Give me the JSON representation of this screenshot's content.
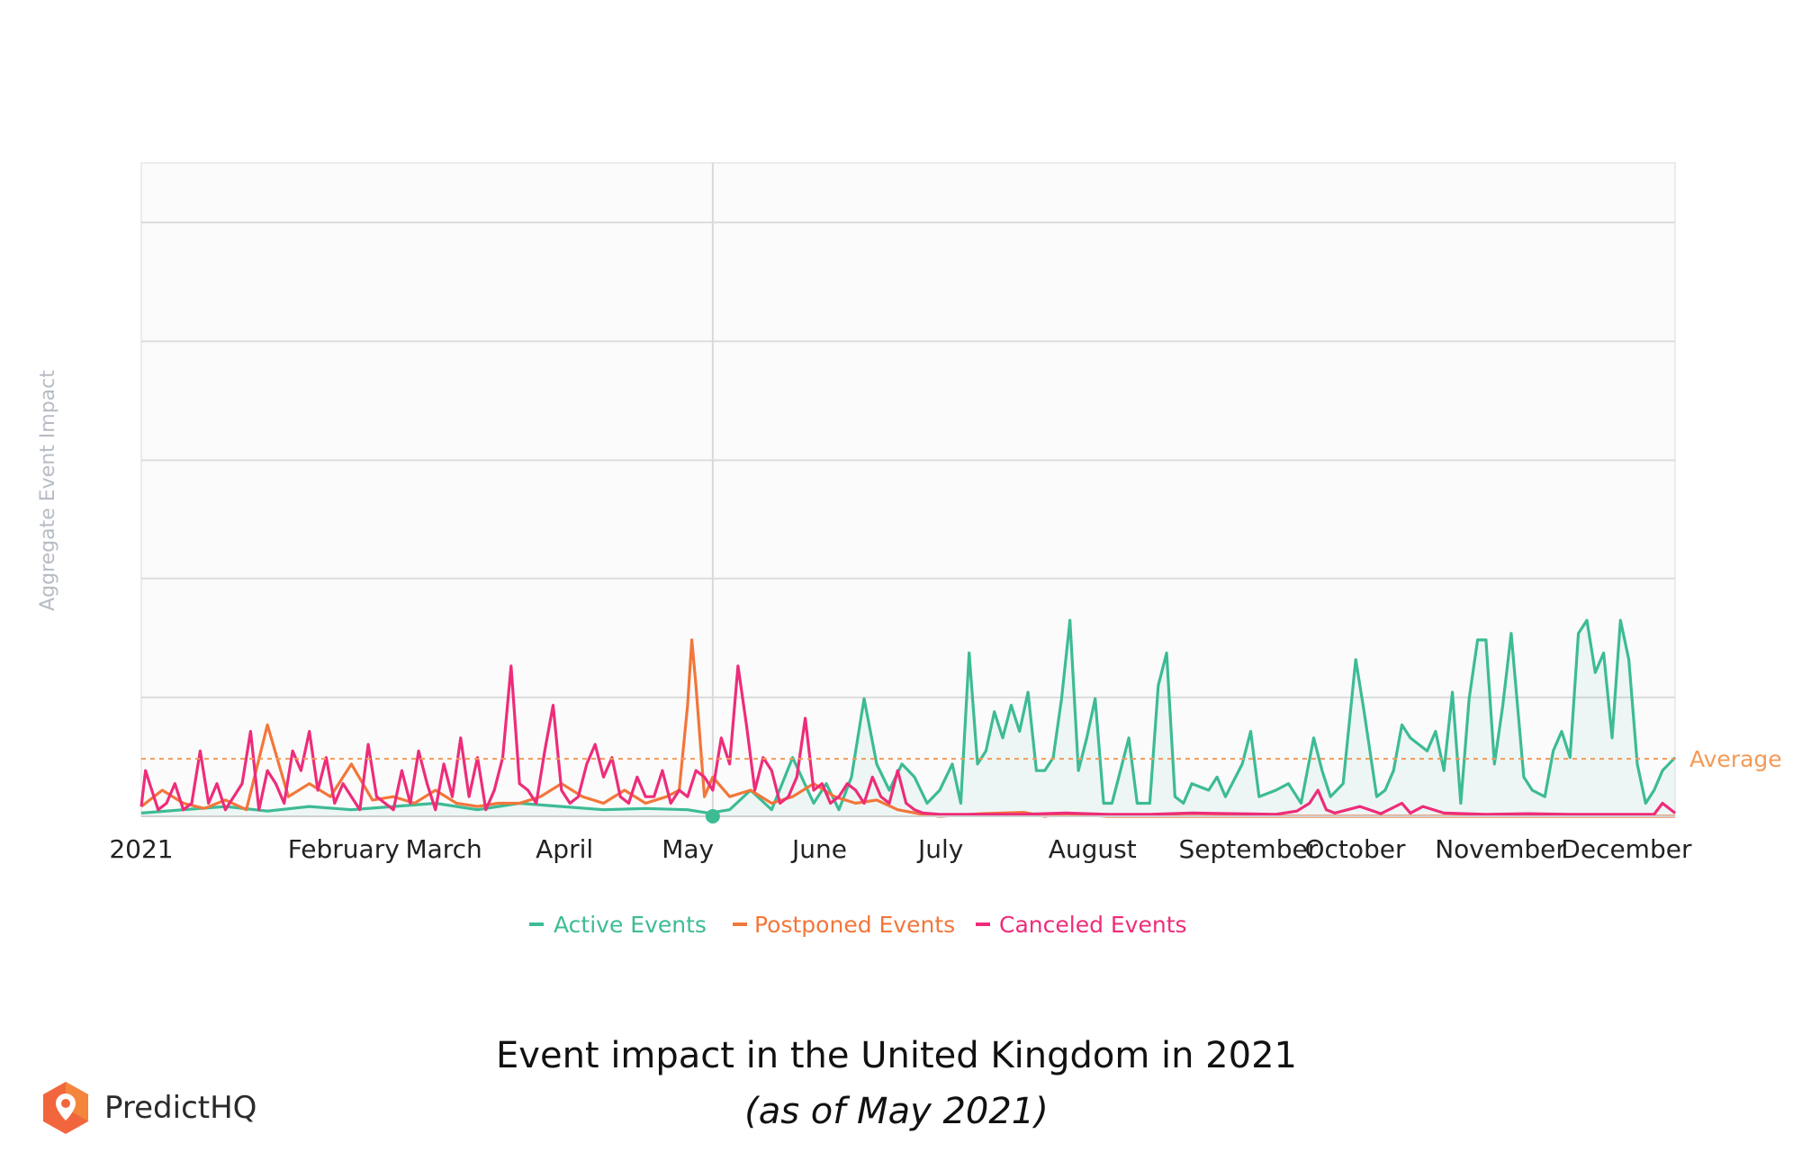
{
  "caption": {
    "title": "Event impact in the United Kingdom in 2021",
    "subtitle": "(as of May 2021)"
  },
  "brand": {
    "name": "PredictHQ",
    "icon": "location-pin-hexagon-icon"
  },
  "colors": {
    "active": "#3dbb95",
    "postponed": "#f3763a",
    "canceled": "#ee2c7a",
    "average": "#f39a57",
    "grid": "#dcdcdc",
    "plot_bg": "#fbfbfb"
  },
  "chart_data": {
    "type": "line",
    "title": "Event impact in the United Kingdom in 2021",
    "subtitle": "(as of May 2021)",
    "xlabel": "",
    "ylabel": "Aggregate Event Impact",
    "x_unit": "day of year 2021",
    "xlim": [
      0,
      365
    ],
    "ylim": [
      0,
      100
    ],
    "y_gridlines": [
      0,
      18.2,
      36.4,
      54.5,
      72.7,
      90.9
    ],
    "y_tick_labels_shown": false,
    "grid": true,
    "x_ticks": [
      {
        "label": "2021",
        "day": 0
      },
      {
        "label": "February",
        "day": 31
      },
      {
        "label": "March",
        "day": 59
      },
      {
        "label": "April",
        "day": 90
      },
      {
        "label": "May",
        "day": 120
      },
      {
        "label": "June",
        "day": 151
      },
      {
        "label": "July",
        "day": 181
      },
      {
        "label": "August",
        "day": 212
      },
      {
        "label": "September",
        "day": 243
      },
      {
        "label": "October",
        "day": 273
      },
      {
        "label": "November",
        "day": 304
      },
      {
        "label": "December",
        "day": 334
      }
    ],
    "current_date_marker_day": 136,
    "average": {
      "label": "Average",
      "value": 8.8
    },
    "legend": {
      "position": "bottom-center",
      "entries": [
        "Active Events",
        "Postponed Events",
        "Canceled Events"
      ]
    },
    "series": [
      {
        "name": "Active Events",
        "area_fill": true,
        "points": [
          [
            0,
            0.5
          ],
          [
            10,
            1
          ],
          [
            20,
            1.5
          ],
          [
            30,
            0.8
          ],
          [
            40,
            1.5
          ],
          [
            50,
            1
          ],
          [
            60,
            1.5
          ],
          [
            70,
            2
          ],
          [
            80,
            1
          ],
          [
            90,
            2
          ],
          [
            100,
            1.5
          ],
          [
            110,
            1
          ],
          [
            120,
            1.2
          ],
          [
            130,
            1
          ],
          [
            135,
            0.5
          ],
          [
            140,
            1
          ],
          [
            145,
            4
          ],
          [
            150,
            1
          ],
          [
            155,
            9
          ],
          [
            160,
            2
          ],
          [
            163,
            5
          ],
          [
            166,
            1
          ],
          [
            169,
            6
          ],
          [
            172,
            18
          ],
          [
            175,
            8
          ],
          [
            178,
            4
          ],
          [
            181,
            8
          ],
          [
            184,
            6
          ],
          [
            187,
            2
          ],
          [
            190,
            4
          ],
          [
            193,
            8
          ],
          [
            195,
            2
          ],
          [
            197,
            25
          ],
          [
            199,
            8
          ],
          [
            201,
            10
          ],
          [
            203,
            16
          ],
          [
            205,
            12
          ],
          [
            207,
            17
          ],
          [
            209,
            13
          ],
          [
            211,
            19
          ],
          [
            213,
            7
          ],
          [
            215,
            7
          ],
          [
            217,
            9
          ],
          [
            219,
            18
          ],
          [
            221,
            30
          ],
          [
            223,
            7
          ],
          [
            225,
            12
          ],
          [
            227,
            18
          ],
          [
            229,
            2
          ],
          [
            231,
            2
          ],
          [
            233,
            7
          ],
          [
            235,
            12
          ],
          [
            237,
            2
          ],
          [
            240,
            2
          ],
          [
            242,
            20
          ],
          [
            244,
            25
          ],
          [
            246,
            3
          ],
          [
            248,
            2
          ],
          [
            250,
            5
          ],
          [
            254,
            4
          ],
          [
            256,
            6
          ],
          [
            258,
            3
          ],
          [
            262,
            8
          ],
          [
            264,
            13
          ],
          [
            266,
            3
          ],
          [
            270,
            4
          ],
          [
            273,
            5
          ],
          [
            276,
            2
          ],
          [
            279,
            12
          ],
          [
            281,
            7
          ],
          [
            283,
            3
          ],
          [
            286,
            5
          ],
          [
            289,
            24
          ],
          [
            291,
            16
          ],
          [
            294,
            3
          ],
          [
            296,
            4
          ],
          [
            298,
            7
          ],
          [
            300,
            14
          ],
          [
            302,
            12
          ],
          [
            304,
            11
          ],
          [
            306,
            10
          ],
          [
            308,
            13
          ],
          [
            310,
            7
          ],
          [
            312,
            19
          ],
          [
            314,
            2
          ],
          [
            316,
            18
          ],
          [
            318,
            27
          ],
          [
            320,
            27
          ],
          [
            322,
            8
          ],
          [
            324,
            17
          ],
          [
            326,
            28
          ],
          [
            329,
            6
          ],
          [
            331,
            4
          ],
          [
            334,
            3
          ],
          [
            336,
            10
          ],
          [
            338,
            13
          ],
          [
            340,
            9
          ],
          [
            342,
            28
          ],
          [
            344,
            30
          ],
          [
            346,
            22
          ],
          [
            348,
            25
          ],
          [
            350,
            12
          ],
          [
            352,
            30
          ],
          [
            354,
            24
          ],
          [
            356,
            8
          ],
          [
            358,
            2
          ],
          [
            360,
            4
          ],
          [
            362,
            7
          ],
          [
            365,
            9
          ]
        ]
      },
      {
        "name": "Postponed Events",
        "points": [
          [
            0,
            1.5
          ],
          [
            5,
            4
          ],
          [
            10,
            2
          ],
          [
            15,
            1.2
          ],
          [
            20,
            2.5
          ],
          [
            25,
            1
          ],
          [
            30,
            14
          ],
          [
            35,
            3
          ],
          [
            40,
            5
          ],
          [
            45,
            3
          ],
          [
            50,
            8
          ],
          [
            55,
            2.5
          ],
          [
            60,
            3
          ],
          [
            65,
            2
          ],
          [
            70,
            4
          ],
          [
            75,
            2
          ],
          [
            80,
            1.5
          ],
          [
            85,
            2
          ],
          [
            90,
            2
          ],
          [
            95,
            3
          ],
          [
            100,
            5
          ],
          [
            105,
            3
          ],
          [
            110,
            2
          ],
          [
            115,
            4
          ],
          [
            120,
            2
          ],
          [
            125,
            3
          ],
          [
            128,
            4
          ],
          [
            130,
            17
          ],
          [
            131,
            27
          ],
          [
            132,
            20
          ],
          [
            134,
            3
          ],
          [
            136,
            6
          ],
          [
            140,
            3
          ],
          [
            145,
            4
          ],
          [
            150,
            2
          ],
          [
            155,
            3
          ],
          [
            160,
            5
          ],
          [
            165,
            3
          ],
          [
            170,
            2
          ],
          [
            175,
            2.5
          ],
          [
            180,
            1
          ],
          [
            185,
            0.4
          ],
          [
            190,
            0
          ],
          [
            200,
            0.4
          ],
          [
            210,
            0.6
          ],
          [
            215,
            0
          ],
          [
            220,
            0.4
          ],
          [
            230,
            0
          ],
          [
            365,
            0
          ]
        ]
      },
      {
        "name": "Canceled Events",
        "points": [
          [
            0,
            1.5
          ],
          [
            1,
            7
          ],
          [
            2,
            5
          ],
          [
            4,
            1
          ],
          [
            6,
            2
          ],
          [
            8,
            5
          ],
          [
            10,
            1
          ],
          [
            12,
            2
          ],
          [
            14,
            10
          ],
          [
            16,
            2
          ],
          [
            18,
            5
          ],
          [
            20,
            1
          ],
          [
            22,
            3
          ],
          [
            24,
            5
          ],
          [
            26,
            13
          ],
          [
            28,
            1
          ],
          [
            30,
            7
          ],
          [
            32,
            5
          ],
          [
            34,
            2
          ],
          [
            36,
            10
          ],
          [
            38,
            7
          ],
          [
            40,
            13
          ],
          [
            42,
            4
          ],
          [
            44,
            9
          ],
          [
            46,
            2
          ],
          [
            48,
            5
          ],
          [
            50,
            3
          ],
          [
            52,
            1
          ],
          [
            54,
            11
          ],
          [
            56,
            3
          ],
          [
            58,
            2
          ],
          [
            60,
            1
          ],
          [
            62,
            7
          ],
          [
            64,
            2
          ],
          [
            66,
            10
          ],
          [
            68,
            5
          ],
          [
            70,
            1
          ],
          [
            72,
            8
          ],
          [
            74,
            3
          ],
          [
            76,
            12
          ],
          [
            78,
            3
          ],
          [
            80,
            9
          ],
          [
            82,
            1
          ],
          [
            84,
            4
          ],
          [
            86,
            9
          ],
          [
            88,
            23
          ],
          [
            90,
            5
          ],
          [
            92,
            4
          ],
          [
            94,
            2
          ],
          [
            96,
            10
          ],
          [
            98,
            17
          ],
          [
            100,
            4
          ],
          [
            102,
            2
          ],
          [
            104,
            3
          ],
          [
            106,
            8
          ],
          [
            108,
            11
          ],
          [
            110,
            6
          ],
          [
            112,
            9
          ],
          [
            114,
            3
          ],
          [
            116,
            2
          ],
          [
            118,
            6
          ],
          [
            120,
            3
          ],
          [
            122,
            3
          ],
          [
            124,
            7
          ],
          [
            126,
            2
          ],
          [
            128,
            4
          ],
          [
            130,
            3
          ],
          [
            132,
            7
          ],
          [
            134,
            6
          ],
          [
            136,
            4
          ],
          [
            138,
            12
          ],
          [
            140,
            8
          ],
          [
            142,
            23
          ],
          [
            144,
            14
          ],
          [
            146,
            4
          ],
          [
            148,
            9
          ],
          [
            150,
            7
          ],
          [
            152,
            2
          ],
          [
            154,
            3
          ],
          [
            156,
            6
          ],
          [
            158,
            15
          ],
          [
            160,
            4
          ],
          [
            162,
            5
          ],
          [
            164,
            2
          ],
          [
            166,
            3
          ],
          [
            168,
            5
          ],
          [
            170,
            4
          ],
          [
            172,
            2
          ],
          [
            174,
            6
          ],
          [
            176,
            3
          ],
          [
            178,
            2
          ],
          [
            180,
            7
          ],
          [
            182,
            2
          ],
          [
            184,
            1
          ],
          [
            186,
            0.5
          ],
          [
            190,
            0.3
          ],
          [
            200,
            0.3
          ],
          [
            210,
            0.3
          ],
          [
            220,
            0.5
          ],
          [
            230,
            0.3
          ],
          [
            240,
            0.3
          ],
          [
            250,
            0.5
          ],
          [
            260,
            0.4
          ],
          [
            270,
            0.3
          ],
          [
            275,
            0.8
          ],
          [
            278,
            2
          ],
          [
            280,
            4
          ],
          [
            282,
            1
          ],
          [
            284,
            0.5
          ],
          [
            290,
            1.5
          ],
          [
            295,
            0.4
          ],
          [
            300,
            2
          ],
          [
            302,
            0.5
          ],
          [
            305,
            1.5
          ],
          [
            310,
            0.5
          ],
          [
            320,
            0.3
          ],
          [
            330,
            0.4
          ],
          [
            340,
            0.3
          ],
          [
            350,
            0.3
          ],
          [
            360,
            0.3
          ],
          [
            362,
            2
          ],
          [
            365,
            0.5
          ]
        ]
      }
    ]
  }
}
